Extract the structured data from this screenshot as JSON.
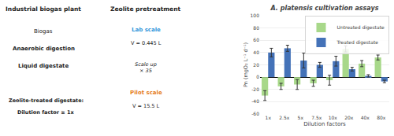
{
  "chart_data": {
    "type": "bar",
    "title": "A. platensis cultivation assays",
    "categories": [
      "1x",
      "2.5x",
      "5x",
      "7.5x",
      "10x",
      "20x",
      "40x",
      "80x"
    ],
    "series": [
      {
        "name": "Untreated digestate",
        "color": "#a8d88a",
        "values": [
          -30,
          -15,
          -12,
          -10,
          -5,
          46,
          22,
          32
        ],
        "errors": [
          8,
          5,
          8,
          5,
          8,
          5,
          5,
          4
        ]
      },
      {
        "name": "Treated digestate",
        "color": "#4472b8",
        "values": [
          40,
          47,
          27,
          20,
          26,
          13,
          2,
          -7
        ],
        "errors": [
          7,
          5,
          12,
          4,
          8,
          3,
          2,
          2
        ]
      }
    ],
    "xlabel": "Dilution factors",
    "ylabel": "Pn (mgO₂ L⁻¹ d⁻¹)",
    "ylim": [
      -60,
      100
    ],
    "yticks": [
      -60,
      -40,
      -20,
      0,
      20,
      40,
      60,
      80,
      100
    ],
    "grid": true,
    "legend": "upper right",
    "annotations": [
      {
        "text": "Industrial biogas plant"
      },
      {
        "text": "Biogas"
      },
      {
        "text": "Anaerobic digestion"
      },
      {
        "text": "Liquid digestate"
      },
      {
        "text": "Zeolite-treated digestate:"
      },
      {
        "text": "Dilution factor ≥ 1x"
      },
      {
        "text": "Zeolite pretreatment"
      },
      {
        "text": "Lab scale",
        "color": "#3498db"
      },
      {
        "text": "V = 0.445 L"
      },
      {
        "text": "Scale up\n× 35"
      },
      {
        "text": "Pilot scale",
        "color": "#e67e22"
      },
      {
        "text": "V = 15.5 L"
      }
    ]
  }
}
